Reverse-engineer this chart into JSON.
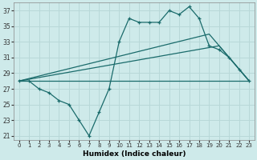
{
  "title": "",
  "xlabel": "Humidex (Indice chaleur)",
  "ylabel": "",
  "bg_color": "#ceeaea",
  "grid_color": "#b8d8d8",
  "line_color": "#1a6b6b",
  "xlim": [
    -0.5,
    23.5
  ],
  "ylim": [
    20.5,
    38.0
  ],
  "xticks": [
    0,
    1,
    2,
    3,
    4,
    5,
    6,
    7,
    8,
    9,
    10,
    11,
    12,
    13,
    14,
    15,
    16,
    17,
    18,
    19,
    20,
    21,
    22,
    23
  ],
  "yticks": [
    21,
    23,
    25,
    27,
    29,
    31,
    33,
    35,
    37
  ],
  "main_line_x": [
    0,
    1,
    2,
    3,
    4,
    5,
    6,
    7,
    8,
    9,
    10,
    11,
    12,
    13,
    14,
    15,
    16,
    17,
    18,
    19,
    20,
    21,
    22,
    23
  ],
  "main_line_y": [
    28,
    28,
    27,
    26.5,
    25.5,
    25,
    23,
    21,
    24,
    27,
    33,
    36,
    35.5,
    35.5,
    35.5,
    37,
    36.5,
    37.5,
    36,
    32.5,
    32,
    31,
    29.5,
    28
  ],
  "line2_x": [
    0,
    19,
    23
  ],
  "line2_y": [
    28,
    34,
    28
  ],
  "line3_x": [
    0,
    20,
    23
  ],
  "line3_y": [
    28,
    32.5,
    28
  ],
  "line4_x": [
    0,
    23
  ],
  "line4_y": [
    28,
    28
  ]
}
